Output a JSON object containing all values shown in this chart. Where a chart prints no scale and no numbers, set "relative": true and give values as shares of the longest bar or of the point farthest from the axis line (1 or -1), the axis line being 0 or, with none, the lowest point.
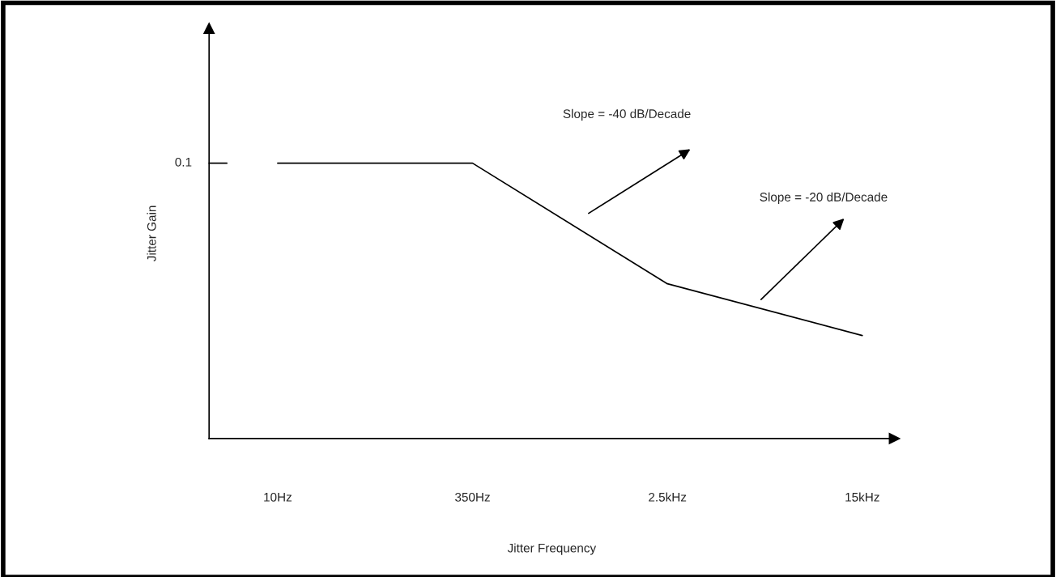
{
  "chart_data": {
    "type": "line",
    "relative": true,
    "xlabel": "Jitter Frequency",
    "ylabel": "Jitter Gain",
    "categories": [
      "10Hz",
      "350Hz",
      "2.5kHz",
      "15kHz"
    ],
    "series": [
      {
        "color": "#000000",
        "values": [
          1,
          1,
          0.562,
          0.374
        ]
      }
    ],
    "annotations": [
      "0.1",
      "Slope = -40 dB/Decade",
      "Slope = -20 dB/Decade"
    ],
    "grid": false,
    "legend": false,
    "marker": "none",
    "line_style": "solid"
  }
}
